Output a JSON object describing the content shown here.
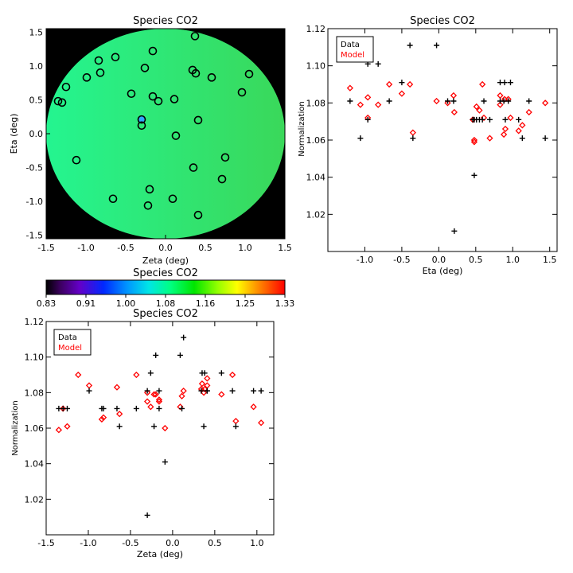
{
  "chart_data": [
    {
      "type": "heatmap",
      "title": "Species CO2",
      "xlabel": "Zeta (deg)",
      "ylabel": "Eta (deg)",
      "xlim": [
        -1.5,
        1.5
      ],
      "ylim": [
        -1.55,
        1.55
      ],
      "x_ticks": [
        "-1.5",
        "-1.0",
        "-0.5",
        "0.0",
        "0.5",
        "1.0",
        "1.5"
      ],
      "y_ticks": [
        "-1.5",
        "-1.0",
        "-0.5",
        "0.0",
        "0.5",
        "1.0",
        "1.5"
      ],
      "disk_color_left": "#24f590",
      "disk_color_right": "#3ad85a",
      "background_color": "#000000",
      "points": [
        {
          "x": 0.37,
          "y": 1.44
        },
        {
          "x": -0.16,
          "y": 1.22
        },
        {
          "x": -0.63,
          "y": 1.13
        },
        {
          "x": -0.84,
          "y": 1.08
        },
        {
          "x": -0.26,
          "y": 0.97
        },
        {
          "x": 0.34,
          "y": 0.94
        },
        {
          "x": -0.82,
          "y": 0.9
        },
        {
          "x": 0.38,
          "y": 0.89
        },
        {
          "x": 1.05,
          "y": 0.88
        },
        {
          "x": -0.99,
          "y": 0.83
        },
        {
          "x": 0.58,
          "y": 0.83
        },
        {
          "x": -1.25,
          "y": 0.69
        },
        {
          "x": 0.96,
          "y": 0.61
        },
        {
          "x": -0.43,
          "y": 0.59
        },
        {
          "x": -0.16,
          "y": 0.55
        },
        {
          "x": -0.09,
          "y": 0.48
        },
        {
          "x": 0.11,
          "y": 0.51
        },
        {
          "x": -1.35,
          "y": 0.48
        },
        {
          "x": -1.3,
          "y": 0.46
        },
        {
          "x": -0.3,
          "y": 0.21,
          "highlight": true
        },
        {
          "x": -0.3,
          "y": 0.12
        },
        {
          "x": 0.41,
          "y": 0.2
        },
        {
          "x": 0.13,
          "y": -0.03
        },
        {
          "x": 0.75,
          "y": -0.35
        },
        {
          "x": -1.12,
          "y": -0.39
        },
        {
          "x": 0.35,
          "y": -0.5
        },
        {
          "x": 0.71,
          "y": -0.67
        },
        {
          "x": -0.2,
          "y": -0.82
        },
        {
          "x": -0.66,
          "y": -0.96
        },
        {
          "x": 0.09,
          "y": -0.96
        },
        {
          "x": -0.22,
          "y": -1.06
        },
        {
          "x": 0.41,
          "y": -1.2
        }
      ]
    },
    {
      "type": "scatter",
      "title": "Species CO2",
      "xlabel": "Eta (deg)",
      "ylabel": "Normalization",
      "xlim": [
        -1.5,
        1.6
      ],
      "ylim": [
        1.0,
        1.12
      ],
      "x_ticks": [
        "-1.0",
        "-0.5",
        "0.0",
        "0.5",
        "1.0",
        "1.5"
      ],
      "y_ticks": [
        "1.02",
        "1.04",
        "1.06",
        "1.08",
        "1.10",
        "1.12"
      ],
      "legend_position": "top-left",
      "series": [
        {
          "name": "Data",
          "marker": "plus",
          "color": "#000000",
          "x": [
            1.44,
            1.22,
            1.13,
            1.08,
            0.97,
            0.94,
            0.9,
            0.89,
            0.88,
            0.83,
            0.83,
            0.69,
            0.61,
            0.59,
            0.55,
            0.48,
            0.51,
            0.48,
            0.46,
            0.21,
            0.12,
            0.2,
            -0.03,
            -0.35,
            -0.39,
            -0.5,
            -0.67,
            -0.82,
            -0.96,
            -0.96,
            -1.06,
            -1.2
          ],
          "y": [
            1.061,
            1.081,
            1.061,
            1.071,
            1.091,
            1.081,
            1.071,
            1.091,
            1.081,
            1.081,
            1.091,
            1.071,
            1.081,
            1.071,
            1.071,
            1.041,
            1.071,
            1.071,
            1.071,
            1.011,
            1.081,
            1.081,
            1.111,
            1.061,
            1.111,
            1.091,
            1.081,
            1.101,
            1.071,
            1.101,
            1.061,
            1.081
          ]
        },
        {
          "name": "Model",
          "marker": "diamond",
          "color": "#ff0000",
          "x": [
            1.44,
            1.22,
            1.13,
            1.08,
            0.97,
            0.94,
            0.9,
            0.89,
            0.88,
            0.83,
            0.83,
            0.69,
            0.61,
            0.59,
            0.55,
            0.48,
            0.51,
            0.48,
            0.46,
            0.21,
            0.12,
            0.2,
            -0.03,
            -0.35,
            -0.39,
            -0.5,
            -0.67,
            -0.82,
            -0.96,
            -0.96,
            -1.06,
            -1.2
          ],
          "y": [
            1.08,
            1.075,
            1.068,
            1.065,
            1.072,
            1.082,
            1.066,
            1.082,
            1.063,
            1.084,
            1.079,
            1.061,
            1.072,
            1.09,
            1.076,
            1.06,
            1.078,
            1.059,
            1.071,
            1.075,
            1.08,
            1.084,
            1.081,
            1.064,
            1.09,
            1.085,
            1.09,
            1.079,
            1.083,
            1.072,
            1.079,
            1.088
          ]
        }
      ]
    },
    {
      "type": "colorbar",
      "title": "Species CO2",
      "tick_labels": [
        "0.83",
        "0.91",
        "1.00",
        "1.08",
        "1.16",
        "1.25",
        "1.33"
      ],
      "range": [
        0.83,
        1.33
      ]
    },
    {
      "type": "scatter",
      "title": "Species CO2",
      "xlabel": "Zeta (deg)",
      "ylabel": "Normalization",
      "xlim": [
        -1.5,
        1.2
      ],
      "ylim": [
        1.0,
        1.12
      ],
      "x_ticks": [
        "-1.5",
        "-1.0",
        "-0.5",
        "0.0",
        "0.5",
        "1.0"
      ],
      "y_ticks": [
        "1.02",
        "1.04",
        "1.06",
        "1.08",
        "1.10",
        "1.12"
      ],
      "legend_position": "top-left",
      "series": [
        {
          "name": "Data",
          "marker": "plus",
          "color": "#000000",
          "x": [
            0.37,
            -0.16,
            -0.63,
            -0.84,
            -0.26,
            0.34,
            -0.82,
            0.38,
            1.05,
            -0.99,
            0.58,
            -1.25,
            0.96,
            -0.43,
            -0.16,
            -0.09,
            0.11,
            -1.35,
            -1.3,
            -0.3,
            -0.3,
            0.41,
            0.13,
            0.75,
            -1.12,
            0.35,
            0.71,
            -0.2,
            -0.66,
            0.09,
            -0.22,
            0.41
          ],
          "y": [
            1.061,
            1.081,
            1.061,
            1.071,
            1.091,
            1.081,
            1.071,
            1.091,
            1.081,
            1.081,
            1.091,
            1.071,
            1.081,
            1.071,
            1.071,
            1.041,
            1.071,
            1.071,
            1.071,
            1.011,
            1.081,
            1.081,
            1.111,
            1.061,
            1.111,
            1.091,
            1.081,
            1.101,
            1.071,
            1.101,
            1.061,
            1.081
          ]
        },
        {
          "name": "Model",
          "marker": "diamond",
          "color": "#ff0000",
          "x": [
            0.37,
            -0.16,
            -0.63,
            -0.84,
            -0.26,
            0.34,
            -0.82,
            0.38,
            1.05,
            -0.99,
            0.58,
            -1.25,
            0.96,
            -0.43,
            -0.16,
            -0.09,
            0.11,
            -1.35,
            -1.3,
            -0.3,
            -0.3,
            0.41,
            0.13,
            0.75,
            -1.12,
            0.35,
            0.71,
            -0.2,
            -0.66,
            0.09,
            -0.22,
            0.41
          ],
          "y": [
            1.08,
            1.075,
            1.068,
            1.065,
            1.072,
            1.082,
            1.066,
            1.082,
            1.063,
            1.084,
            1.079,
            1.061,
            1.072,
            1.09,
            1.076,
            1.06,
            1.078,
            1.059,
            1.071,
            1.075,
            1.08,
            1.084,
            1.081,
            1.064,
            1.09,
            1.085,
            1.09,
            1.079,
            1.083,
            1.072,
            1.079,
            1.088
          ]
        }
      ]
    }
  ]
}
